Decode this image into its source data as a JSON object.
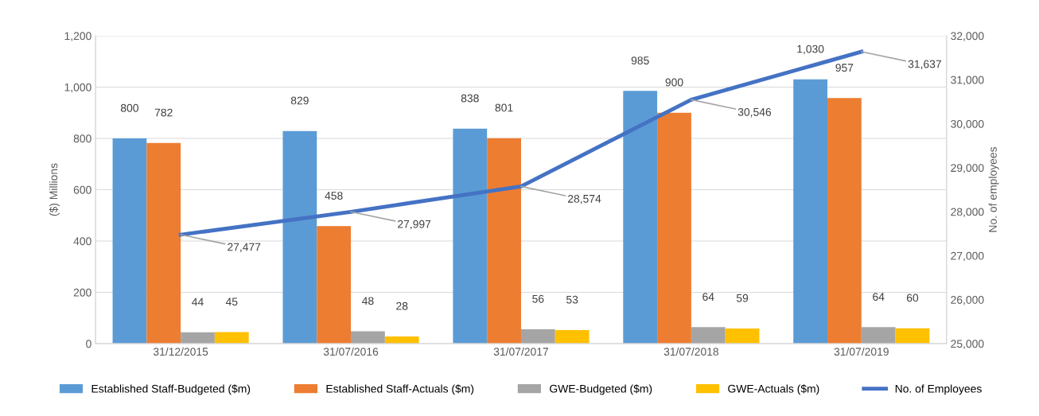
{
  "chart_data": {
    "type": "bar",
    "categories": [
      "31/12/2015",
      "31/07/2016",
      "31/07/2017",
      "31/07/2018",
      "31/07/2019"
    ],
    "ylabel": "($) Millions",
    "y2label": "No. of employees",
    "ylim": [
      0,
      1200
    ],
    "yticks": [
      0,
      200,
      400,
      600,
      800,
      {
        "value": 1000,
        "label": "1,000"
      },
      {
        "value": 1200,
        "label": "1,200"
      }
    ],
    "y2lim": [
      25000,
      32000
    ],
    "y2ticks": [
      {
        "value": 25000,
        "label": "25,000"
      },
      {
        "value": 26000,
        "label": "26,000"
      },
      {
        "value": 27000,
        "label": "27,000"
      },
      {
        "value": 28000,
        "label": "28,000"
      },
      {
        "value": 29000,
        "label": "29,000"
      },
      {
        "value": 30000,
        "label": "30,000"
      },
      {
        "value": 31000,
        "label": "31,000"
      },
      {
        "value": 32000,
        "label": "32,000"
      }
    ],
    "grid": "y",
    "legend": "bottom",
    "marker": "none",
    "line_style": "solid",
    "series": [
      {
        "name": "Established Staff-Budgeted ($m)",
        "color": "#5b9bd5",
        "values": [
          800,
          829,
          838,
          985,
          1030
        ],
        "value_labels": [
          "800",
          "829",
          "838",
          "985",
          "1,030"
        ]
      },
      {
        "name": "Established Staff-Actuals ($m)",
        "color": "#ed7d31",
        "values": [
          782,
          458,
          801,
          900,
          957
        ],
        "value_labels": [
          "782",
          "458",
          "801",
          "900",
          "957"
        ]
      },
      {
        "name": "GWE-Budgeted ($m)",
        "color": "#a5a5a5",
        "values": [
          44,
          48,
          56,
          64,
          64
        ],
        "value_labels": [
          "44",
          "48",
          "56",
          "64",
          "64"
        ]
      },
      {
        "name": "GWE-Actuals ($m)",
        "color": "#ffc000",
        "values": [
          45,
          28,
          53,
          59,
          60
        ],
        "value_labels": [
          "45",
          "28",
          "53",
          "59",
          "60"
        ]
      },
      {
        "name": "No. of Employees",
        "type": "line",
        "axis": "y2",
        "color": "#4472c4",
        "values": [
          27477,
          27997,
          28574,
          30546,
          31637
        ],
        "value_labels": [
          "27,477",
          "27,997",
          "28,574",
          "30,546",
          "31,637"
        ]
      }
    ]
  }
}
